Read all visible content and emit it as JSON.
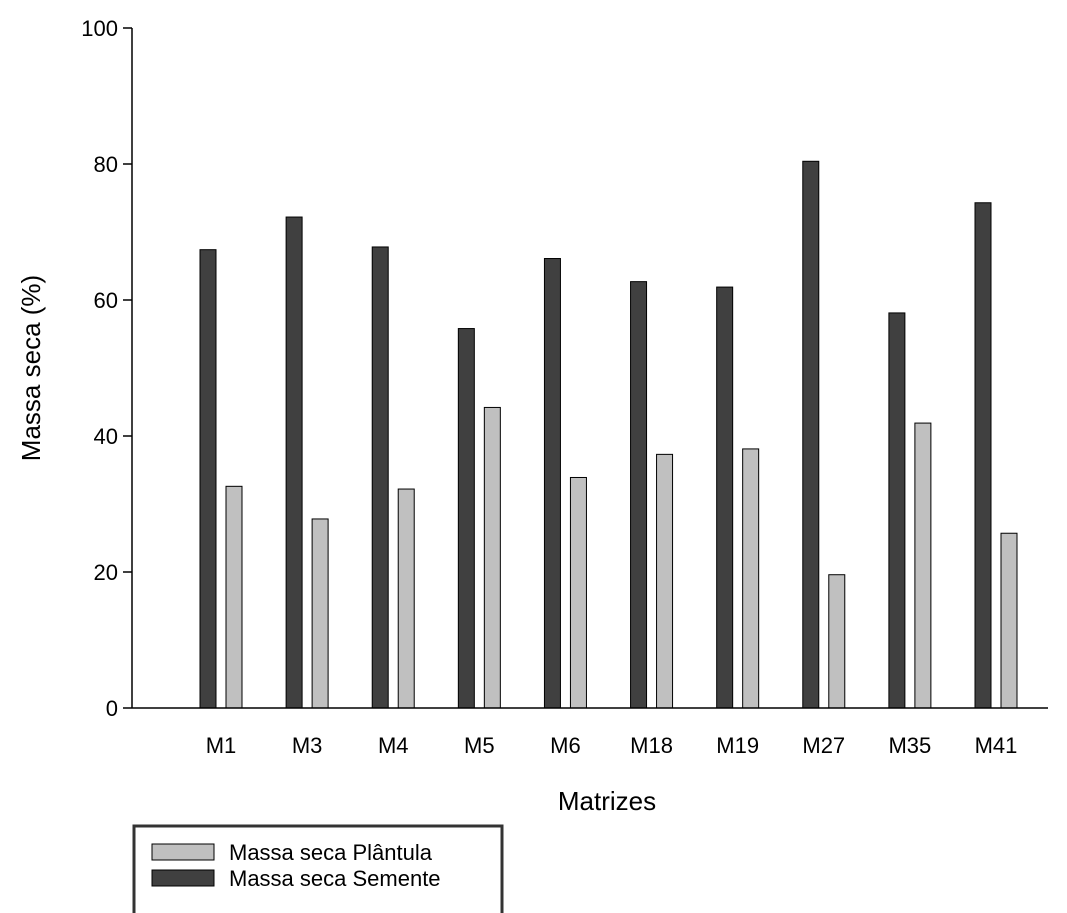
{
  "chart_data": {
    "type": "bar",
    "xlabel": "Matrizes",
    "ylabel": "Massa seca (%)",
    "ylim": [
      0,
      100
    ],
    "yticks": [
      0,
      20,
      40,
      60,
      80,
      100
    ],
    "categories": [
      "M1",
      "M3",
      "M4",
      "M5",
      "M6",
      "M18",
      "M19",
      "M27",
      "M35",
      "M41"
    ],
    "series": [
      {
        "name": "Massa seca Semente",
        "color": "#404040",
        "values": [
          67.4,
          72.2,
          67.8,
          55.8,
          66.1,
          62.7,
          61.9,
          80.4,
          58.1,
          74.3
        ]
      },
      {
        "name": "Massa seca Plântula",
        "color": "#c0c0c0",
        "values": [
          32.6,
          27.8,
          32.2,
          44.2,
          33.9,
          37.3,
          38.1,
          19.6,
          41.9,
          25.7
        ]
      }
    ],
    "legend_position": "bottom-left",
    "legend_order": [
      "Massa seca Plântula",
      "Massa seca Semente"
    ],
    "grid": false
  }
}
